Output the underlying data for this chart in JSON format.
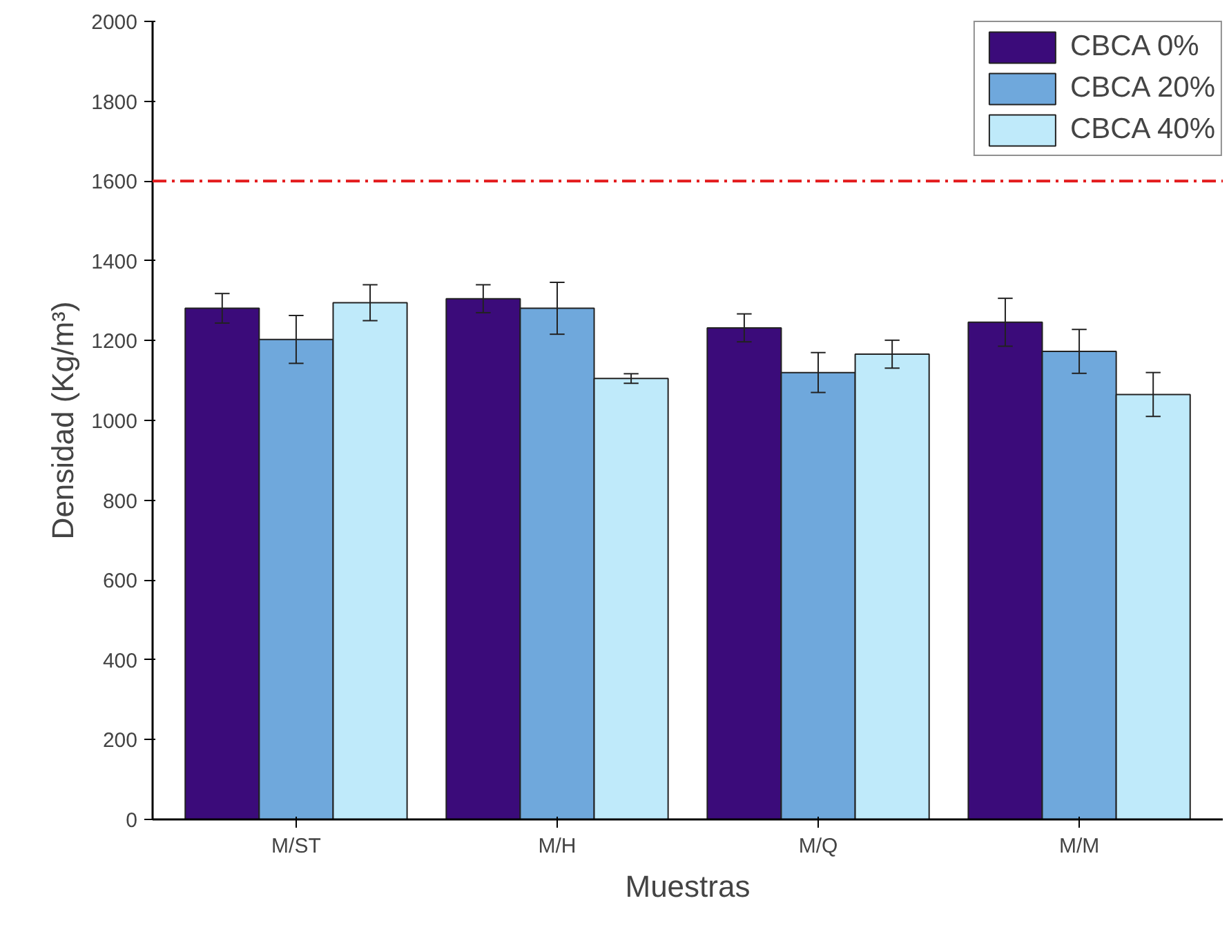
{
  "chart_data": {
    "type": "bar",
    "xlabel": "Muestras",
    "ylabel": "Densidad (Kg/m³)",
    "categories": [
      "M/ST",
      "M/H",
      "M/Q",
      "M/M"
    ],
    "series": [
      {
        "name": "CBCA 0%",
        "color": "#3b0b7a",
        "values": [
          1281,
          1305,
          1232,
          1246
        ],
        "errors": [
          37,
          35,
          35,
          60
        ]
      },
      {
        "name": "CBCA 20%",
        "color": "#6fa8dc",
        "values": [
          1203,
          1281,
          1120,
          1173
        ],
        "errors": [
          60,
          65,
          50,
          55
        ]
      },
      {
        "name": "CBCA 40%",
        "color": "#bfeafa",
        "values": [
          1295,
          1105,
          1166,
          1065
        ],
        "errors": [
          45,
          12,
          35,
          55
        ]
      }
    ],
    "ylim": [
      0,
      2000
    ],
    "yticks": [
      0,
      200,
      400,
      600,
      800,
      1000,
      1200,
      1400,
      1600,
      1800,
      2000
    ],
    "ref_lines": [
      {
        "axis": "y",
        "value": 1600,
        "color": "#e31a1c",
        "line_style": "dashdot"
      }
    ],
    "legend": "top right",
    "grid": false
  }
}
